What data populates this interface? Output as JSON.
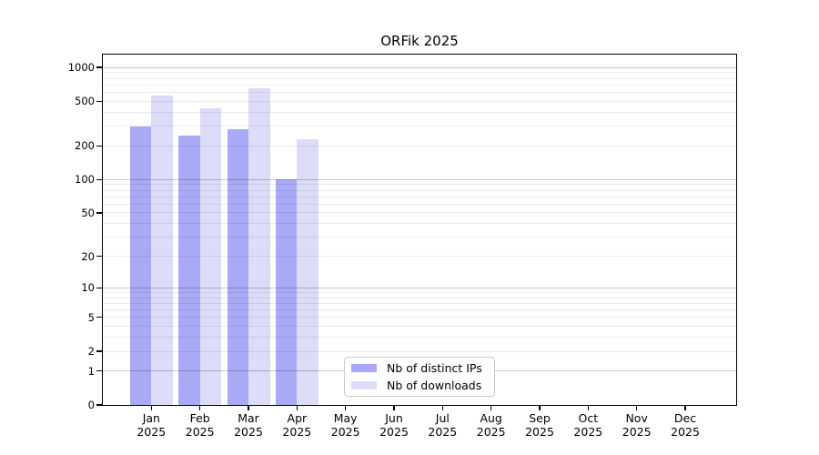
{
  "chart_data": {
    "type": "bar",
    "title": "ORFik 2025",
    "categories": [
      "Jan 2025",
      "Feb 2025",
      "Mar 2025",
      "Apr 2025",
      "May 2025",
      "Jun 2025",
      "Jul 2025",
      "Aug 2025",
      "Sep 2025",
      "Oct 2025",
      "Nov 2025",
      "Dec 2025"
    ],
    "series": [
      {
        "name": "Nb of distinct IPs",
        "color": "#a9a9f6",
        "values": [
          300,
          245,
          280,
          100,
          null,
          null,
          null,
          null,
          null,
          null,
          null,
          null
        ]
      },
      {
        "name": "Nb of downloads",
        "color": "#dcdcf9",
        "values": [
          560,
          435,
          650,
          230,
          null,
          null,
          null,
          null,
          null,
          null,
          null,
          null
        ]
      }
    ],
    "yscale": "log1p",
    "yticks": [
      0,
      1,
      2,
      5,
      10,
      20,
      50,
      100,
      200,
      500,
      1000
    ],
    "ylim": [
      0,
      1300
    ],
    "grid": "on",
    "grid_major_color": "rgba(0,0,0,0.22)",
    "grid_minor_color": "rgba(0,0,0,0.075)",
    "axis_color": "#000000",
    "text_color": "#000000",
    "legend_loc": "lower center"
  }
}
